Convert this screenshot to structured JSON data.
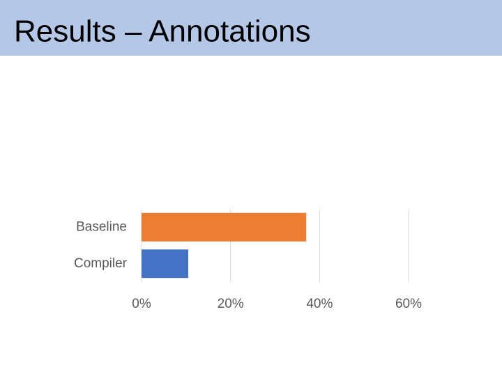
{
  "header": {
    "title": "Results – Annotations"
  },
  "chart_data": {
    "type": "bar",
    "orientation": "horizontal",
    "categories": [
      "Baseline",
      "Compiler"
    ],
    "values": [
      37,
      10.5
    ],
    "colors": [
      "#ed7d31",
      "#4472c4"
    ],
    "xlim": [
      0,
      60
    ],
    "xticks": [
      {
        "value": 0,
        "label": "0%"
      },
      {
        "value": 20,
        "label": "20%"
      },
      {
        "value": 40,
        "label": "40%"
      },
      {
        "value": 60,
        "label": "60%"
      }
    ],
    "grid": true
  }
}
